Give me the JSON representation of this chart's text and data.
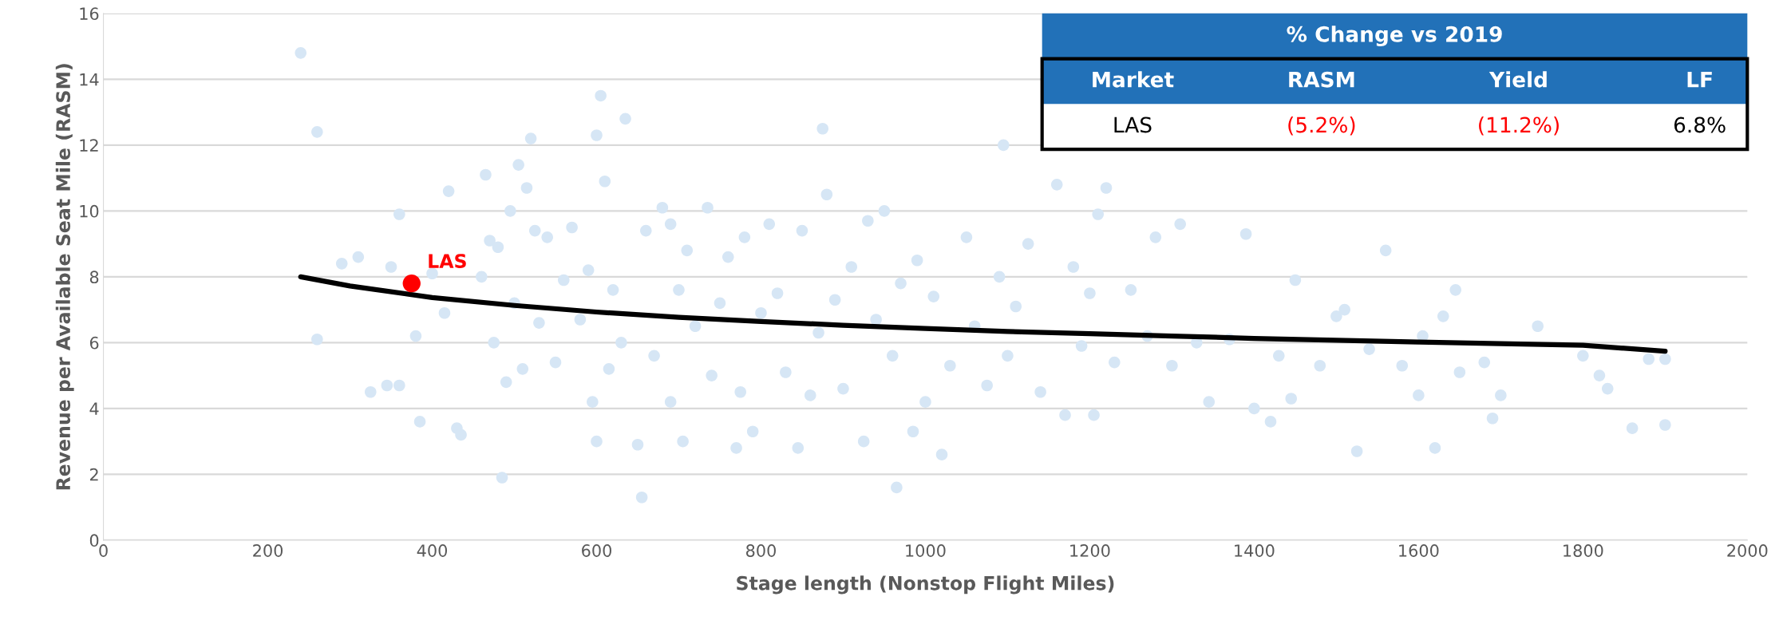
{
  "chart_data": {
    "type": "scatter",
    "xlabel": "Stage length (Nonstop Flight Miles)",
    "ylabel": "Revenue per Available Seat Mile (RASM)",
    "xlim": [
      0,
      2000
    ],
    "xticks": [
      0,
      200,
      400,
      600,
      800,
      1000,
      1200,
      1400,
      1600,
      1800,
      2000
    ],
    "ylim": [
      0,
      16
    ],
    "yticks": [
      0,
      2,
      4,
      6,
      8,
      10,
      12,
      14,
      16
    ],
    "grid": "y",
    "legend": false,
    "marker": "circle",
    "annotations": [
      "% Change vs 2019",
      "Market",
      "RASM",
      "Yield",
      "LF",
      "LAS",
      "(5.2%)",
      "(11.2%)",
      "6.8%"
    ],
    "series": [
      {
        "color": "#d6e6f5",
        "x": [
          240,
          260,
          260,
          290,
          310,
          325,
          345,
          350,
          360,
          360,
          380,
          385,
          400,
          415,
          420,
          430,
          435,
          460,
          465,
          470,
          475,
          480,
          485,
          490,
          495,
          500,
          505,
          510,
          515,
          520,
          525,
          530,
          540,
          550,
          560,
          570,
          580,
          590,
          595,
          600,
          600,
          605,
          610,
          615,
          620,
          630,
          635,
          650,
          655,
          660,
          670,
          680,
          690,
          690,
          700,
          705,
          710,
          720,
          735,
          740,
          750,
          760,
          770,
          775,
          780,
          790,
          800,
          810,
          820,
          830,
          845,
          850,
          860,
          870,
          875,
          880,
          890,
          900,
          910,
          925,
          930,
          940,
          950,
          960,
          965,
          970,
          985,
          990,
          1000,
          1010,
          1020,
          1030,
          1050,
          1060,
          1075,
          1090,
          1095,
          1100,
          1110,
          1125,
          1140,
          1160,
          1170,
          1180,
          1190,
          1200,
          1205,
          1210,
          1220,
          1230,
          1250,
          1270,
          1280,
          1300,
          1310,
          1330,
          1345,
          1370,
          1390,
          1400,
          1420,
          1430,
          1445,
          1450,
          1480,
          1500,
          1510,
          1525,
          1540,
          1560,
          1580,
          1600,
          1605,
          1620,
          1630,
          1645,
          1650,
          1680,
          1690,
          1700,
          1745,
          1800,
          1820,
          1830,
          1860,
          1880,
          1900,
          1900
        ],
        "values": [
          14.8,
          12.4,
          6.1,
          8.4,
          8.6,
          4.5,
          4.7,
          8.3,
          4.7,
          9.9,
          6.2,
          3.6,
          8.1,
          6.9,
          10.6,
          3.4,
          3.2,
          8.0,
          11.1,
          9.1,
          6.0,
          8.9,
          1.9,
          4.8,
          10.0,
          7.2,
          11.4,
          5.2,
          10.7,
          12.2,
          9.4,
          6.6,
          9.2,
          5.4,
          7.9,
          9.5,
          6.7,
          8.2,
          4.2,
          3.0,
          12.3,
          13.5,
          10.9,
          5.2,
          7.6,
          6.0,
          12.8,
          2.9,
          1.3,
          9.4,
          5.6,
          10.1,
          9.6,
          4.2,
          7.6,
          3.0,
          8.8,
          6.5,
          10.1,
          5.0,
          7.2,
          8.6,
          2.8,
          4.5,
          9.2,
          3.3,
          6.9,
          9.6,
          7.5,
          5.1,
          2.8,
          9.4,
          4.4,
          6.3,
          12.5,
          10.5,
          7.3,
          4.6,
          8.3,
          3.0,
          9.7,
          6.7,
          10.0,
          5.6,
          1.6,
          7.8,
          3.3,
          8.5,
          4.2,
          7.4,
          2.6,
          5.3,
          9.2,
          6.5,
          4.7,
          8.0,
          12.0,
          5.6,
          7.1,
          9.0,
          4.5,
          10.8,
          3.8,
          8.3,
          5.9,
          7.5,
          3.8,
          9.9,
          10.7,
          5.4,
          7.6,
          6.2,
          9.2,
          5.3,
          9.6,
          6.0,
          4.2,
          6.1,
          9.3,
          4.0,
          3.6,
          5.6,
          4.3,
          7.9,
          5.3,
          6.8,
          7.0,
          2.7,
          5.8,
          8.8,
          5.3,
          4.4,
          6.2,
          2.8,
          6.8,
          7.6,
          5.1,
          5.4,
          3.7,
          4.4,
          6.5,
          5.6,
          5.0,
          4.6,
          3.4,
          5.5,
          5.5,
          3.5
        ]
      },
      {
        "type": "line",
        "color": "#000000",
        "marker": "none",
        "x": [
          240,
          300,
          400,
          500,
          600,
          700,
          800,
          900,
          1000,
          1100,
          1200,
          1300,
          1400,
          1500,
          1600,
          1700,
          1800,
          1900
        ],
        "values": [
          8.0,
          7.72,
          7.37,
          7.13,
          6.93,
          6.77,
          6.64,
          6.53,
          6.43,
          6.34,
          6.27,
          6.2,
          6.13,
          6.07,
          6.02,
          5.97,
          5.92,
          5.74
        ]
      },
      {
        "name": "LAS",
        "color": "#ff0000",
        "x": [
          375
        ],
        "values": [
          7.8
        ]
      }
    ]
  }
}
